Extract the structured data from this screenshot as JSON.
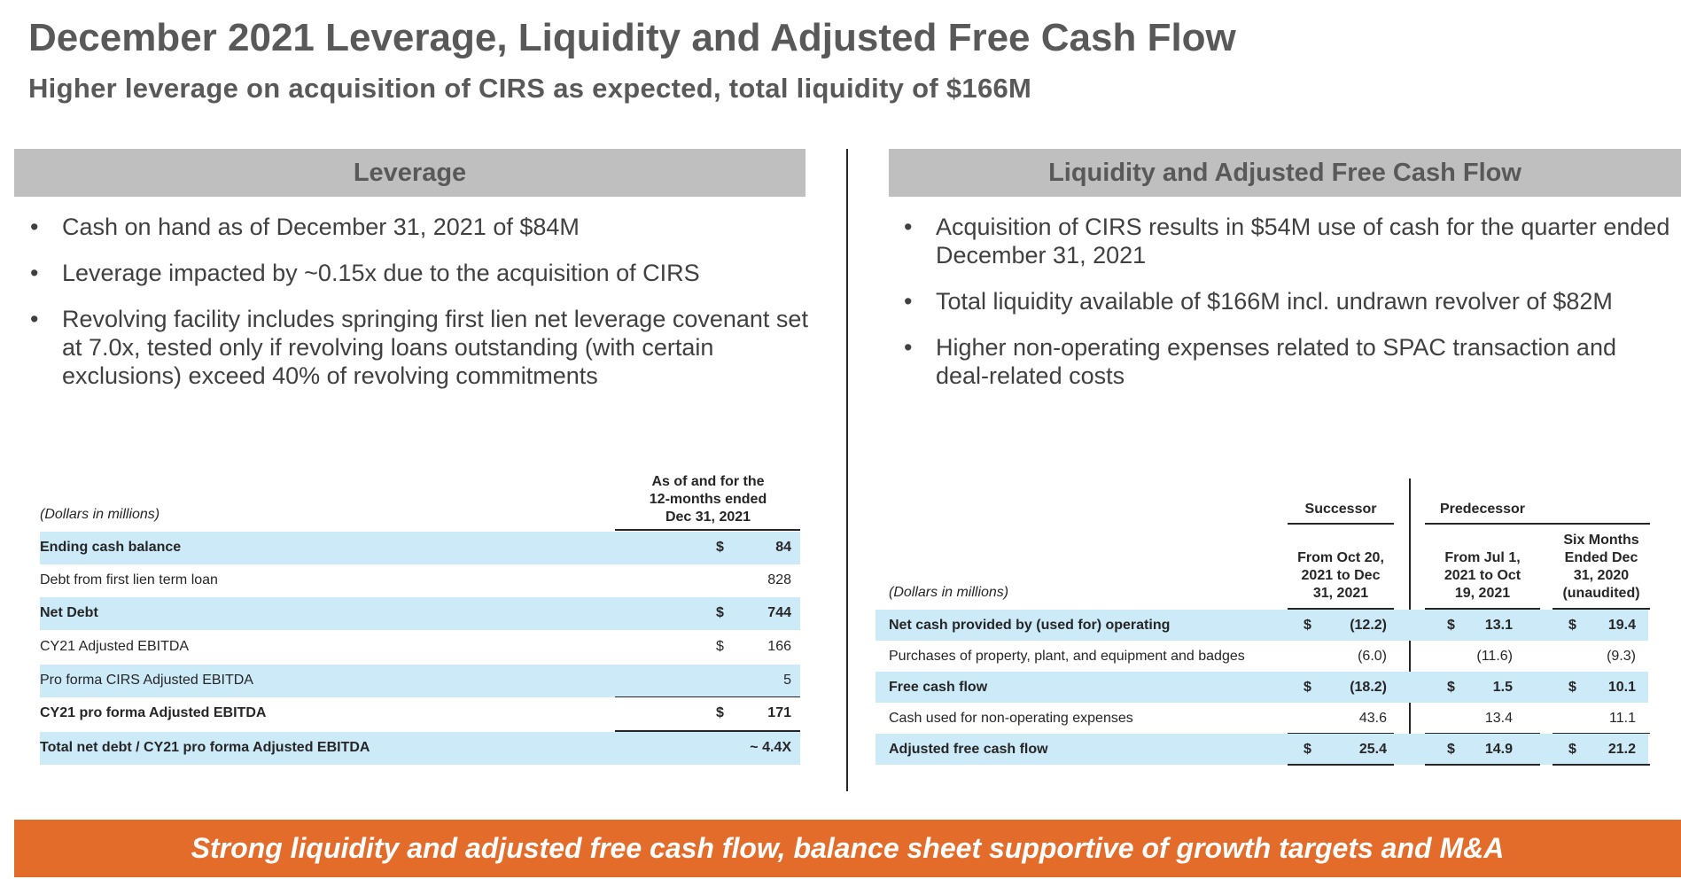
{
  "title": "December 2021 Leverage, Liquidity and Adjusted Free Cash Flow",
  "subtitle": "Higher leverage on acquisition of CIRS as expected, total liquidity of $166M",
  "leverage": {
    "header": "Leverage",
    "bullets": [
      "Cash on hand as of December 31, 2021 of $84M",
      "Leverage impacted by ~0.15x due to the acquisition of CIRS",
      "Revolving facility includes springing first lien net leverage covenant set at 7.0x, tested only if revolving loans outstanding (with certain exclusions) exceed 40% of revolving commitments"
    ],
    "table": {
      "units_label": "(Dollars in millions)",
      "col_header_1": "As of and for the",
      "col_header_2": "12-months ended",
      "col_header_3": "Dec 31, 2021",
      "rows": [
        {
          "label": "Ending cash balance",
          "currency": "$",
          "value": "84"
        },
        {
          "label": "Debt from first lien term loan",
          "currency": "",
          "value": "828"
        },
        {
          "label": "Net Debt",
          "currency": "$",
          "value": "744"
        },
        {
          "label": "CY21 Adjusted EBITDA",
          "currency": "$",
          "value": "166"
        },
        {
          "label": "Pro forma CIRS Adjusted EBITDA",
          "currency": "",
          "value": "5"
        },
        {
          "label": "CY21 pro forma Adjusted EBITDA",
          "currency": "$",
          "value": "171"
        },
        {
          "label": "Total net debt / CY21 pro forma Adjusted EBITDA",
          "currency": "",
          "value": "~ 4.4X"
        }
      ]
    }
  },
  "liquidity": {
    "header": "Liquidity and Adjusted Free Cash Flow",
    "bullets": [
      "Acquisition of CIRS results in $54M use of cash for the quarter ended December 31, 2021",
      "Total liquidity available of $166M incl. undrawn revolver of $82M",
      "Higher non-operating expenses related to SPAC transaction and deal-related costs"
    ],
    "table": {
      "units_label": "(Dollars in millions)",
      "group_successor": "Successor",
      "group_predecessor": "Predecessor",
      "col1": [
        "From Oct 20,",
        "2021 to Dec",
        "31, 2021"
      ],
      "col2": [
        "From Jul 1,",
        "2021 to Oct",
        "19, 2021"
      ],
      "col3": [
        "Six Months",
        "Ended Dec",
        "31, 2020",
        "(unaudited)"
      ],
      "rows": [
        {
          "label": "Net cash provided by (used for) operating",
          "c1": "$",
          "v1": "(12.2)",
          "c2": "$",
          "v2": "13.1",
          "c3": "$",
          "v3": "19.4"
        },
        {
          "label": "Purchases of property, plant, and equipment and badges",
          "c1": "",
          "v1": "(6.0)",
          "c2": "",
          "v2": "(11.6)",
          "c3": "",
          "v3": "(9.3)"
        },
        {
          "label": "Free cash flow",
          "c1": "$",
          "v1": "(18.2)",
          "c2": "$",
          "v2": "1.5",
          "c3": "$",
          "v3": "10.1"
        },
        {
          "label": "Cash used for non-operating expenses",
          "c1": "",
          "v1": "43.6",
          "c2": "",
          "v2": "13.4",
          "c3": "",
          "v3": "11.1"
        },
        {
          "label": "Adjusted free cash flow",
          "c1": "$",
          "v1": "25.4",
          "c2": "$",
          "v2": "14.9",
          "c3": "$",
          "v3": "21.2"
        }
      ]
    }
  },
  "footer": "Strong liquidity and adjusted free cash flow, balance sheet supportive of growth targets and M&A",
  "colors": {
    "header_gray": "#bfbfbf",
    "row_blue": "#cdeaf9",
    "footer_orange": "#e46c2b"
  }
}
